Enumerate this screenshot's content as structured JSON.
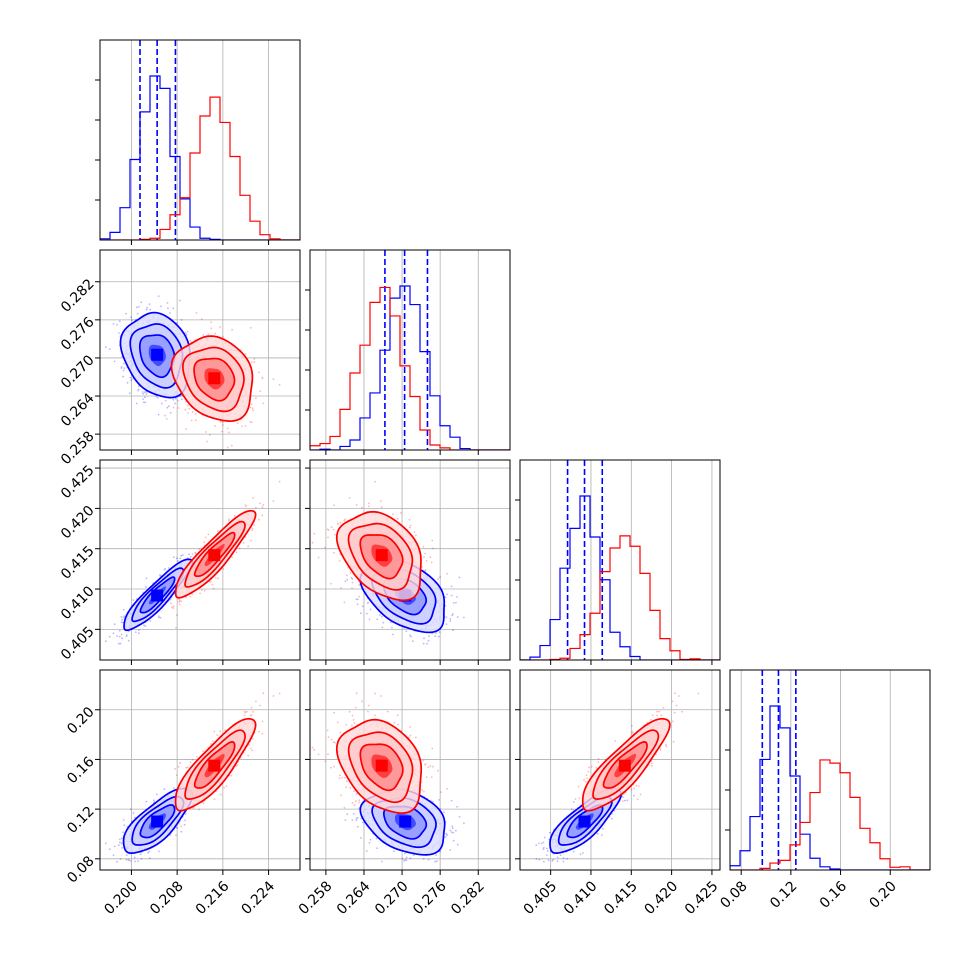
{
  "chart_data": {
    "type": "corner",
    "parameters": [
      {
        "ticks": [
          "0.200",
          "0.208",
          "0.216",
          "0.224"
        ],
        "range": [
          0.1945,
          0.2295
        ]
      },
      {
        "ticks": [
          "0.258",
          "0.264",
          "0.270",
          "0.276",
          "0.282"
        ],
        "range": [
          0.2555,
          0.287
        ]
      },
      {
        "ticks": [
          "0.405",
          "0.410",
          "0.415",
          "0.420",
          "0.425"
        ],
        "range": [
          0.4012,
          0.426
        ]
      },
      {
        "ticks": [
          "0.08",
          "0.12",
          "0.16",
          "0.20"
        ],
        "range": [
          0.071,
          0.232
        ]
      }
    ],
    "series": [
      {
        "color": "#0000ff",
        "means": [
          0.2045,
          0.2705,
          0.4092,
          0.11
        ],
        "sigmas": [
          0.003,
          0.0033,
          0.0022,
          0.013
        ],
        "correlations": [
          [
            1,
            -0.2,
            0.9,
            0.75
          ],
          [
            -0.2,
            1,
            -0.4,
            -0.3
          ],
          [
            0.9,
            -0.4,
            1,
            0.8
          ],
          [
            0.75,
            -0.3,
            0.8,
            1
          ]
        ],
        "quantiles": [
          [
            0.2015,
            0.2045,
            0.2077
          ],
          [
            0.2673,
            0.2704,
            0.274
          ],
          [
            0.4071,
            0.4092,
            0.4114
          ],
          [
            0.097,
            0.11,
            0.124
          ]
        ]
      },
      {
        "color": "#ff0000",
        "means": [
          0.2145,
          0.2668,
          0.4142,
          0.155
        ],
        "sigmas": [
          0.0035,
          0.0033,
          0.0027,
          0.0185
        ],
        "correlations": [
          [
            1,
            -0.2,
            0.9,
            0.85
          ],
          [
            -0.2,
            1,
            -0.35,
            -0.3
          ],
          [
            0.9,
            -0.35,
            1,
            0.85
          ],
          [
            0.85,
            -0.3,
            0.85,
            1
          ]
        ],
        "quantiles": []
      }
    ],
    "histogram_bins": 20,
    "contour_levels": [
      0.5,
      1.0,
      1.5,
      2.0
    ],
    "grid": true,
    "layout": "lower-triangle 4x4 with marginal histograms on diagonal"
  }
}
